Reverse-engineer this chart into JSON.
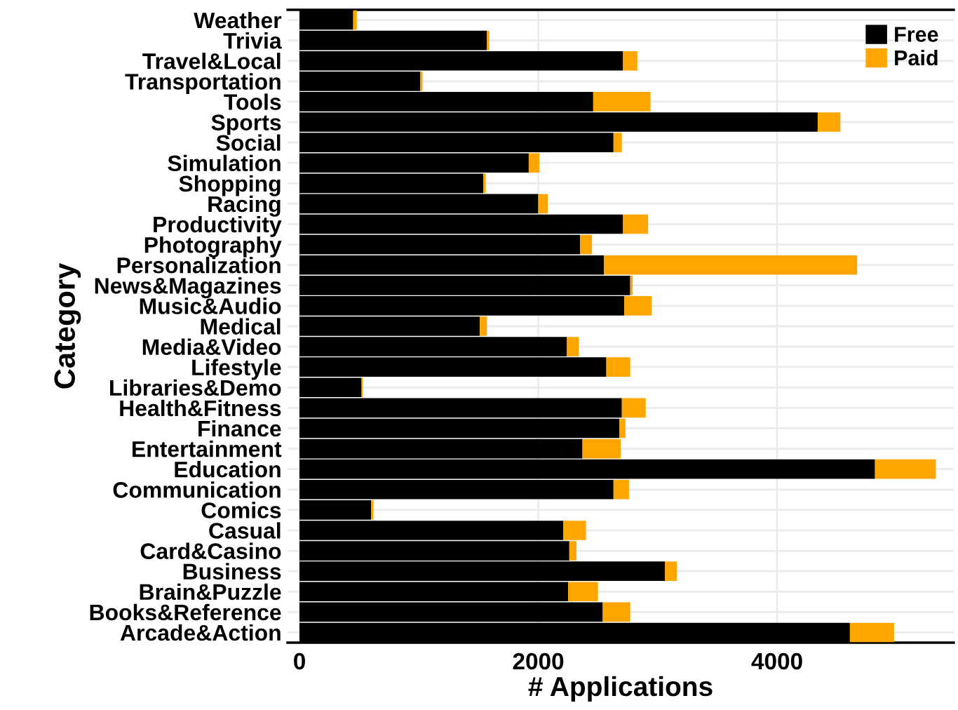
{
  "chart_data": {
    "type": "bar",
    "orientation": "horizontal",
    "stacked": true,
    "xlabel": "# Applications",
    "ylabel": "Category",
    "categories": [
      "Weather",
      "Trivia",
      "Travel&Local",
      "Transportation",
      "Tools",
      "Sports",
      "Social",
      "Simulation",
      "Shopping",
      "Racing",
      "Productivity",
      "Photography",
      "Personalization",
      "News&Magazines",
      "Music&Audio",
      "Medical",
      "Media&Video",
      "Lifestyle",
      "Libraries&Demo",
      "Health&Fitness",
      "Finance",
      "Entertainment",
      "Education",
      "Communication",
      "Comics",
      "Casual",
      "Card&Casino",
      "Business",
      "Brain&Puzzle",
      "Books&Reference",
      "Arcade&Action"
    ],
    "series": [
      {
        "name": "Free",
        "color": "#000000",
        "values": [
          450,
          1570,
          2710,
          1010,
          2460,
          4340,
          2630,
          1920,
          1540,
          2000,
          2710,
          2350,
          2550,
          2770,
          2720,
          1510,
          2240,
          2570,
          520,
          2700,
          2680,
          2370,
          4820,
          2630,
          600,
          2210,
          2260,
          3060,
          2250,
          2540,
          4610
        ]
      },
      {
        "name": "Paid",
        "color": "#ffa500",
        "values": [
          30,
          20,
          120,
          20,
          480,
          190,
          70,
          90,
          20,
          80,
          210,
          100,
          2120,
          20,
          230,
          60,
          100,
          200,
          10,
          200,
          50,
          320,
          510,
          130,
          20,
          190,
          60,
          100,
          250,
          230,
          370
        ]
      }
    ],
    "xlim": [
      -100,
      5480
    ],
    "xticks": [
      0,
      2000,
      4000
    ],
    "grid": true,
    "legend": "top right"
  }
}
